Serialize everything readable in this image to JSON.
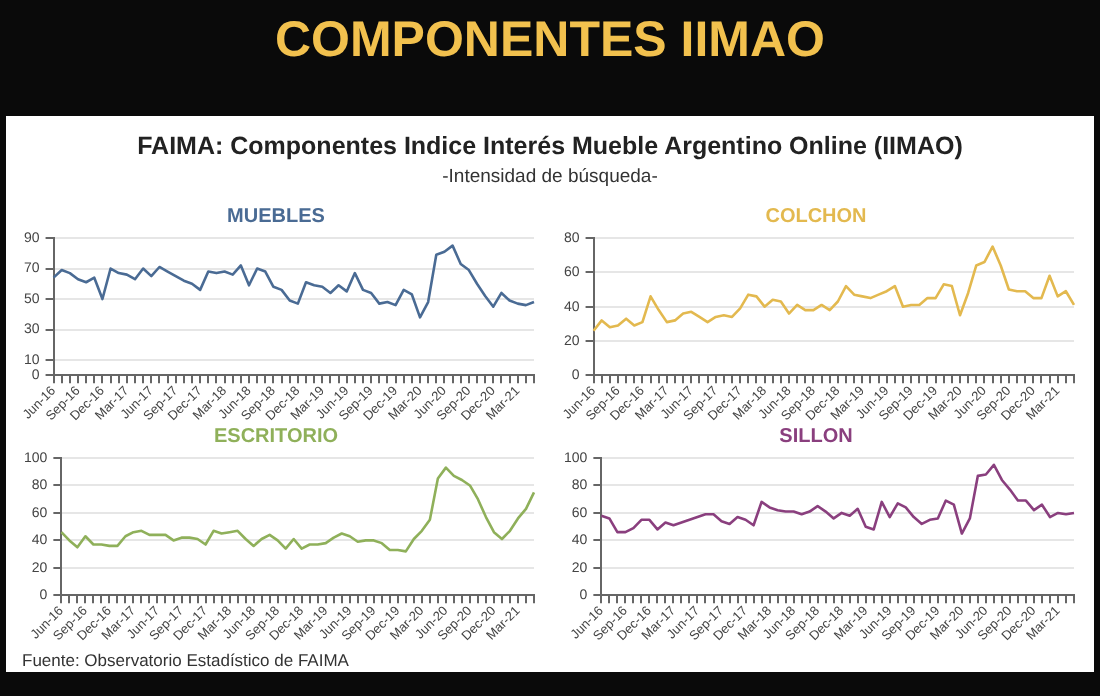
{
  "chart_data": [
    {
      "type": "line",
      "title": "MUEBLES",
      "annotations": [
        "COMPONENTES IIMAO",
        "FAIMA: Componentes Indice Interés Mueble Argentino Online (IIMAO)",
        "-Intensidad de búsqueda-",
        "Fuente: Observatorio Estadístico de FAIMA"
      ],
      "categories": [
        "Jun-16",
        null,
        null,
        "Sep-16",
        null,
        null,
        "Dec-16",
        null,
        null,
        "Mar-17",
        null,
        null,
        "Jun-17",
        null,
        null,
        "Sep-17",
        null,
        null,
        "Dec-17",
        null,
        null,
        "Mar-18",
        null,
        null,
        "Jun-18",
        null,
        null,
        "Sep-18",
        null,
        null,
        "Dec-18",
        null,
        null,
        "Mar-19",
        null,
        null,
        "Jun-19",
        null,
        null,
        "Sep-19",
        null,
        null,
        "Dec-19",
        null,
        null,
        "Mar-20",
        null,
        null,
        "Jun-20",
        null,
        null,
        "Sep-20",
        null,
        null,
        "Dec-20",
        null,
        null,
        "Mar-21",
        null,
        null
      ],
      "series": [
        {
          "color": "#4a6b94",
          "values": [
            64,
            69,
            67,
            63,
            61,
            64,
            50,
            70,
            67,
            66,
            63,
            70,
            65,
            71,
            68,
            65,
            62,
            60,
            56,
            68,
            67,
            68,
            66,
            72,
            59,
            70,
            68,
            58,
            56,
            49,
            47,
            61,
            59,
            58,
            54,
            59,
            55,
            67,
            56,
            54,
            47,
            48,
            46,
            56,
            53,
            38,
            48,
            79,
            81,
            85,
            73,
            69,
            60,
            52,
            45,
            54,
            49,
            47,
            46,
            48
          ]
        }
      ],
      "ylim": [
        0,
        90
      ],
      "yticks": [
        0,
        10,
        30,
        50,
        70,
        90
      ],
      "grid": "y",
      "marker": "none"
    },
    {
      "type": "line",
      "title": "COLCHON",
      "categories": [
        "Jun-16",
        null,
        null,
        "Sep-16",
        null,
        null,
        "Dec-16",
        null,
        null,
        "Mar-17",
        null,
        null,
        "Jun-17",
        null,
        null,
        "Sep-17",
        null,
        null,
        "Dec-17",
        null,
        null,
        "Mar-18",
        null,
        null,
        "Jun-18",
        null,
        null,
        "Sep-18",
        null,
        null,
        "Dec-18",
        null,
        null,
        "Mar-19",
        null,
        null,
        "Jun-19",
        null,
        null,
        "Sep-19",
        null,
        null,
        "Dec-19",
        null,
        null,
        "Mar-20",
        null,
        null,
        "Jun-20",
        null,
        null,
        "Sep-20",
        null,
        null,
        "Dec-20",
        null,
        null,
        "Mar-21",
        null,
        null
      ],
      "series": [
        {
          "color": "#e3b94f",
          "values": [
            26,
            32,
            28,
            29,
            33,
            29,
            31,
            46,
            38,
            31,
            32,
            36,
            37,
            34,
            31,
            34,
            35,
            34,
            39,
            47,
            46,
            40,
            44,
            43,
            36,
            41,
            38,
            38,
            41,
            38,
            43,
            52,
            47,
            46,
            45,
            47,
            49,
            52,
            40,
            41,
            41,
            45,
            45,
            53,
            52,
            35,
            48,
            64,
            66,
            75,
            64,
            50,
            49,
            49,
            45,
            45,
            58,
            46,
            49,
            41
          ]
        }
      ],
      "ylim": [
        0,
        80
      ],
      "yticks": [
        0,
        20,
        40,
        60,
        80
      ],
      "grid": "y",
      "marker": "none"
    },
    {
      "type": "line",
      "title": "ESCRITORIO",
      "categories": [
        "Jun-16",
        null,
        null,
        "Sep-16",
        null,
        null,
        "Dec-16",
        null,
        null,
        "Mar-17",
        null,
        null,
        "Jun-17",
        null,
        null,
        "Sep-17",
        null,
        null,
        "Dec-17",
        null,
        null,
        "Mar-18",
        null,
        null,
        "Jun-18",
        null,
        null,
        "Sep-18",
        null,
        null,
        "Dec-18",
        null,
        null,
        "Mar-19",
        null,
        null,
        "Jun-19",
        null,
        null,
        "Sep-19",
        null,
        null,
        "Dec-19",
        null,
        null,
        "Mar-20",
        null,
        null,
        "Jun-20",
        null,
        null,
        "Sep-20",
        null,
        null,
        "Dec-20",
        null,
        null,
        "Mar-21",
        null,
        null
      ],
      "series": [
        {
          "color": "#8fb05a",
          "values": [
            46,
            40,
            35,
            43,
            37,
            37,
            36,
            36,
            43,
            46,
            47,
            44,
            44,
            44,
            40,
            42,
            42,
            41,
            37,
            47,
            45,
            46,
            47,
            41,
            36,
            41,
            44,
            40,
            34,
            41,
            34,
            37,
            37,
            38,
            42,
            45,
            43,
            39,
            40,
            40,
            38,
            33,
            33,
            32,
            41,
            47,
            55,
            85,
            93,
            87,
            84,
            80,
            70,
            57,
            46,
            41,
            47,
            56,
            63,
            75
          ]
        }
      ],
      "ylim": [
        0,
        100
      ],
      "yticks": [
        0,
        20,
        40,
        60,
        80,
        100
      ],
      "grid": "y",
      "marker": "none"
    },
    {
      "type": "line",
      "title": "SILLON",
      "categories": [
        "Jun-16",
        null,
        null,
        "Sep-16",
        null,
        null,
        "Dec-16",
        null,
        null,
        "Mar-17",
        null,
        null,
        "Jun-17",
        null,
        null,
        "Sep-17",
        null,
        null,
        "Dec-17",
        null,
        null,
        "Mar-18",
        null,
        null,
        "Jun-18",
        null,
        null,
        "Sep-18",
        null,
        null,
        "Dec-18",
        null,
        null,
        "Mar-19",
        null,
        null,
        "Jun-19",
        null,
        null,
        "Sep-19",
        null,
        null,
        "Dec-19",
        null,
        null,
        "Mar-20",
        null,
        null,
        "Jun-20",
        null,
        null,
        "Sep-20",
        null,
        null,
        "Dec-20",
        null,
        null,
        "Mar-21",
        null,
        null
      ],
      "series": [
        {
          "color": "#8a3f7e",
          "values": [
            58,
            56,
            46,
            46,
            49,
            55,
            55,
            48,
            53,
            51,
            53,
            55,
            57,
            59,
            59,
            54,
            52,
            57,
            55,
            51,
            68,
            64,
            62,
            61,
            61,
            59,
            61,
            65,
            61,
            56,
            60,
            58,
            63,
            50,
            48,
            68,
            57,
            67,
            64,
            57,
            52,
            55,
            56,
            69,
            66,
            45,
            56,
            87,
            88,
            95,
            84,
            77,
            69,
            69,
            62,
            66,
            57,
            60,
            59,
            60
          ]
        }
      ],
      "ylim": [
        0,
        100
      ],
      "yticks": [
        0,
        20,
        40,
        60,
        80,
        100
      ],
      "grid": "y",
      "marker": "none"
    }
  ]
}
